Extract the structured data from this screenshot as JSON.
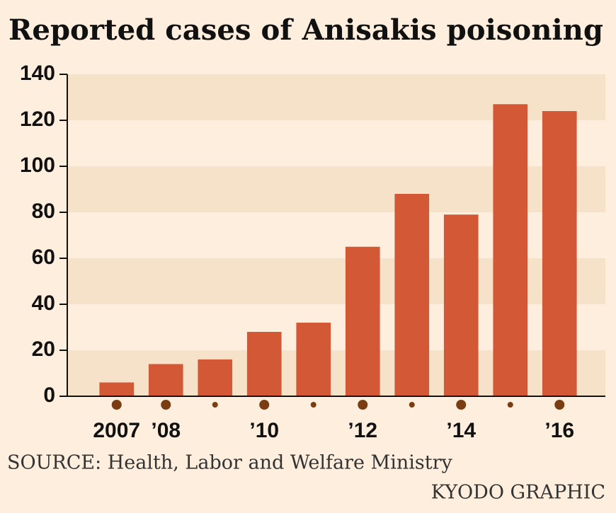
{
  "chart_data": {
    "type": "bar",
    "title": "Reported cases of Anisakis poisoning",
    "categories": [
      "2007",
      "’08",
      null,
      "’10",
      null,
      "’12",
      null,
      "’14",
      null,
      "’16"
    ],
    "values": [
      6,
      14,
      16,
      28,
      32,
      65,
      88,
      79,
      127,
      124
    ],
    "color": "#d35836",
    "ylim": [
      0,
      140
    ],
    "yticks": [
      0,
      20,
      40,
      60,
      80,
      100,
      120,
      140
    ],
    "grid": true,
    "source": "SOURCE: Health, Labor and Welfare Ministry",
    "credit": "KYODO GRAPHIC"
  }
}
